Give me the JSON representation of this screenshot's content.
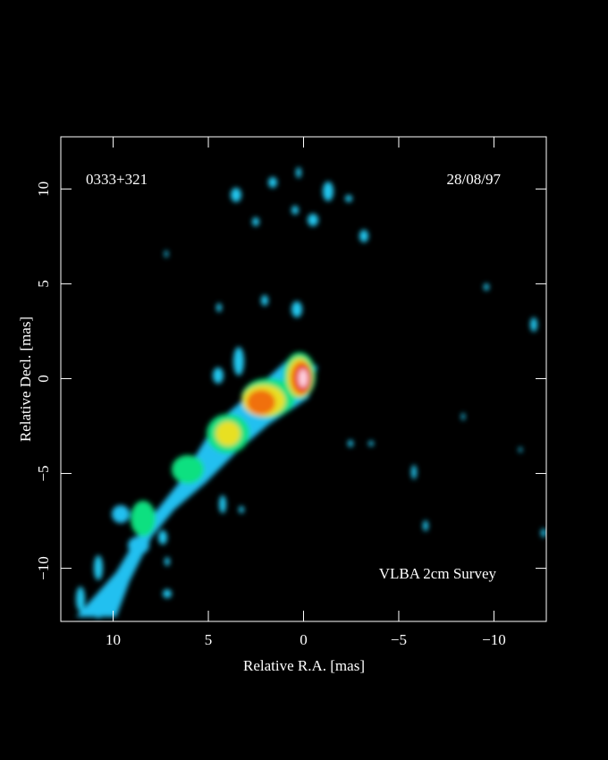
{
  "chart_data": {
    "type": "image",
    "source": "0333+321",
    "date": "28/08/97",
    "annotation": "VLBA 2cm Survey",
    "x_label": "Relative R.A. [mas]",
    "y_label": "Relative Decl. [mas]",
    "xlim": [
      12.75,
      -12.75
    ],
    "ylim": [
      -12.8,
      12.75
    ],
    "xticks": [
      10,
      5,
      0,
      {
        "value": -5,
        "label": "−5"
      },
      {
        "value": -10,
        "label": "−10"
      }
    ],
    "yticks": [
      {
        "value": -10,
        "label": "−10"
      },
      {
        "value": -5,
        "label": "−5"
      },
      0,
      5,
      10
    ]
  }
}
